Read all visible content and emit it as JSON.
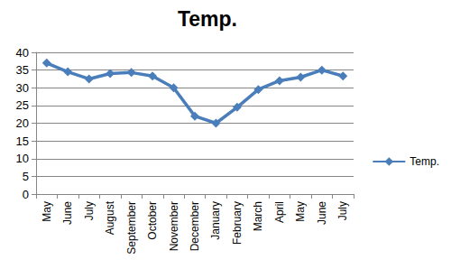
{
  "chart_data": {
    "type": "line",
    "title": "Temp.",
    "categories": [
      "May",
      "June",
      "July",
      "August",
      "September",
      "October",
      "November",
      "December",
      "January",
      "February",
      "March",
      "April",
      "May",
      "June",
      "July"
    ],
    "series": [
      {
        "name": "Temp.",
        "color": "#4a7ebb",
        "marker": "diamond",
        "line_style": "solid",
        "values": [
          37,
          34.5,
          32.5,
          34,
          34.3,
          33.3,
          30,
          22,
          20,
          24.5,
          29.5,
          32,
          33,
          35,
          33.3
        ]
      }
    ],
    "ylim": [
      0,
      40
    ],
    "yticks": [
      0,
      5,
      10,
      15,
      20,
      25,
      30,
      35,
      40
    ],
    "grid": true,
    "legend": "right"
  }
}
